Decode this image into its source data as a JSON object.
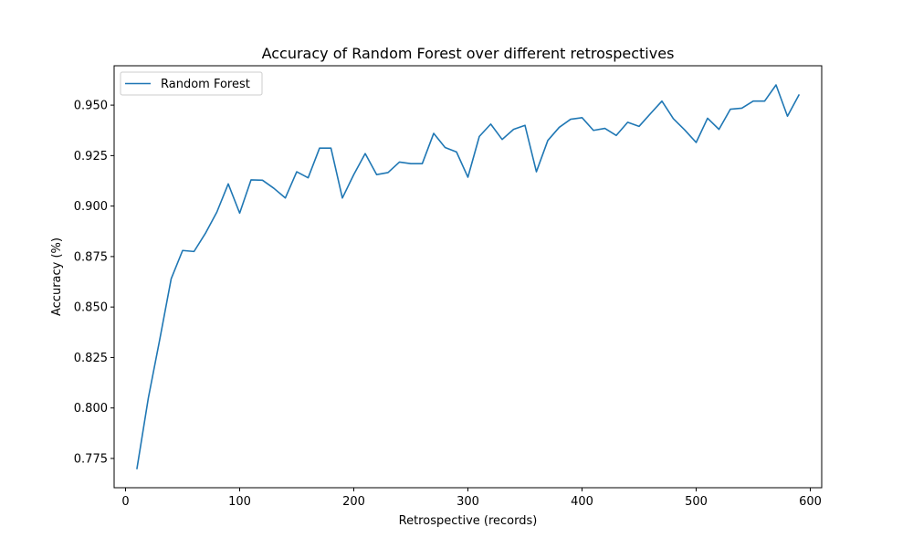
{
  "chart_data": {
    "type": "line",
    "title": "Accuracy of Random Forest over different retrospectives",
    "xlabel": "Retrospective (records)",
    "ylabel": "Accuracy (%)",
    "xlim": [
      -10,
      610
    ],
    "ylim": [
      0.7605,
      0.9695
    ],
    "xticks": [
      0,
      100,
      200,
      300,
      400,
      500,
      600
    ],
    "yticks": [
      0.775,
      0.8,
      0.825,
      0.85,
      0.875,
      0.9,
      0.925,
      0.95
    ],
    "ytick_labels": [
      "0.775",
      "0.800",
      "0.825",
      "0.850",
      "0.875",
      "0.900",
      "0.925",
      "0.950"
    ],
    "grid": false,
    "legend_position": "top-left",
    "series": [
      {
        "name": "Random Forest",
        "color": "#1f77b4",
        "x": [
          10,
          20,
          30,
          40,
          50,
          60,
          70,
          80,
          90,
          100,
          110,
          120,
          130,
          140,
          150,
          160,
          170,
          180,
          190,
          200,
          210,
          220,
          230,
          240,
          250,
          260,
          270,
          280,
          290,
          300,
          310,
          320,
          330,
          340,
          350,
          360,
          370,
          380,
          390,
          400,
          410,
          420,
          430,
          440,
          450,
          460,
          470,
          480,
          490,
          500,
          510,
          520,
          530,
          540,
          550,
          560,
          570,
          580,
          590
        ],
        "y": [
          0.77,
          0.805,
          0.834,
          0.864,
          0.878,
          0.8775,
          0.8865,
          0.897,
          0.911,
          0.8965,
          0.913,
          0.9128,
          0.9088,
          0.904,
          0.917,
          0.914,
          0.9287,
          0.9287,
          0.904,
          0.9156,
          0.926,
          0.9156,
          0.9166,
          0.9218,
          0.921,
          0.921,
          0.936,
          0.929,
          0.9268,
          0.9143,
          0.9345,
          0.9406,
          0.933,
          0.938,
          0.94,
          0.917,
          0.9325,
          0.939,
          0.943,
          0.9438,
          0.9375,
          0.9385,
          0.935,
          0.9415,
          0.9395,
          0.9458,
          0.952,
          0.9433,
          0.9377,
          0.9315,
          0.9435,
          0.938,
          0.948,
          0.9485,
          0.952,
          0.952,
          0.96,
          0.9445,
          0.955
        ]
      }
    ]
  }
}
